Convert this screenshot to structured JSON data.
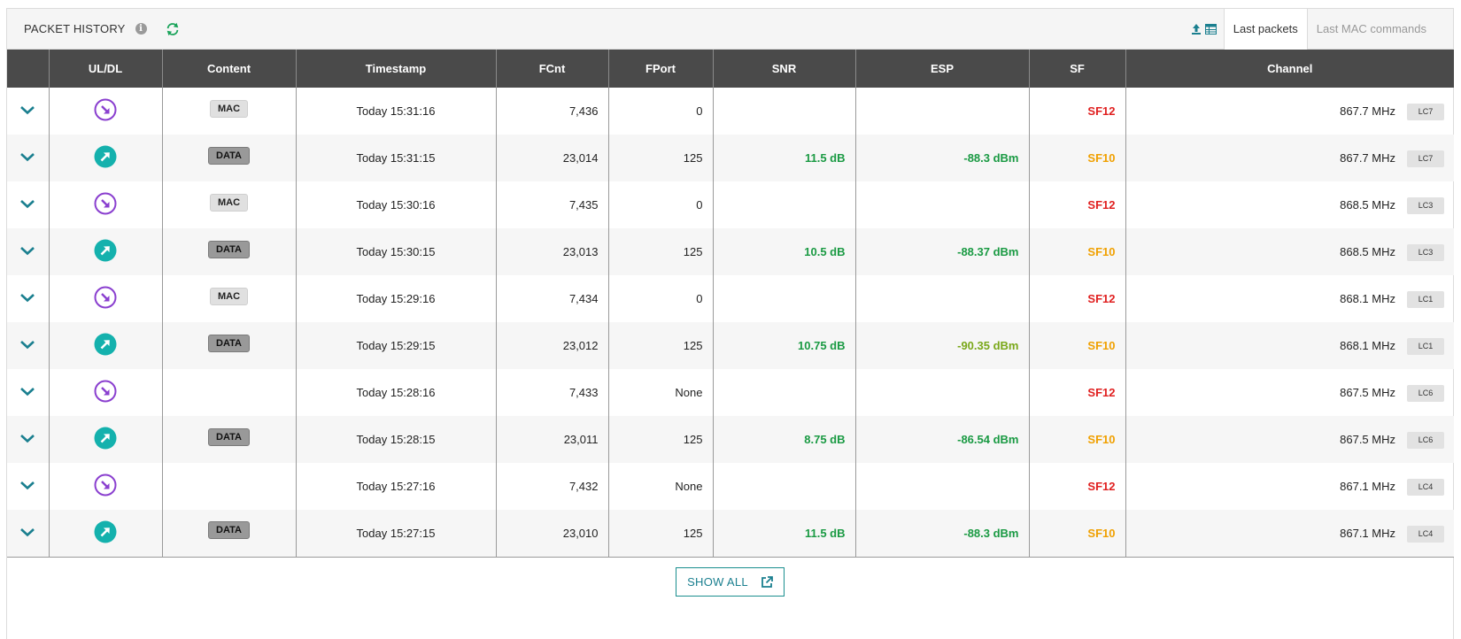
{
  "header": {
    "title": "PACKET HISTORY",
    "tabs": [
      {
        "label": "Last packets",
        "active": true
      },
      {
        "label": "Last MAC commands",
        "active": false
      }
    ]
  },
  "table": {
    "columns": [
      "",
      "UL/DL",
      "Content",
      "Timestamp",
      "FCnt",
      "FPort",
      "SNR",
      "ESP",
      "SF",
      "Channel"
    ],
    "rows": [
      {
        "dir": "down",
        "content": "MAC",
        "timestamp": "Today 15:31:16",
        "fcnt": "7,436",
        "fport": "0",
        "snr": "",
        "esp": "",
        "sf": "SF12",
        "channel": "867.7 MHz",
        "lc": "LC7"
      },
      {
        "dir": "up",
        "content": "DATA",
        "timestamp": "Today 15:31:15",
        "fcnt": "23,014",
        "fport": "125",
        "snr": "11.5 dB",
        "esp": "-88.3 dBm",
        "sf": "SF10",
        "channel": "867.7 MHz",
        "lc": "LC7"
      },
      {
        "dir": "down",
        "content": "MAC",
        "timestamp": "Today 15:30:16",
        "fcnt": "7,435",
        "fport": "0",
        "snr": "",
        "esp": "",
        "sf": "SF12",
        "channel": "868.5 MHz",
        "lc": "LC3"
      },
      {
        "dir": "up",
        "content": "DATA",
        "timestamp": "Today 15:30:15",
        "fcnt": "23,013",
        "fport": "125",
        "snr": "10.5 dB",
        "esp": "-88.37 dBm",
        "sf": "SF10",
        "channel": "868.5 MHz",
        "lc": "LC3"
      },
      {
        "dir": "down",
        "content": "MAC",
        "timestamp": "Today 15:29:16",
        "fcnt": "7,434",
        "fport": "0",
        "snr": "",
        "esp": "",
        "sf": "SF12",
        "channel": "868.1 MHz",
        "lc": "LC1"
      },
      {
        "dir": "up",
        "content": "DATA",
        "timestamp": "Today 15:29:15",
        "fcnt": "23,012",
        "fport": "125",
        "snr": "10.75 dB",
        "esp": "-90.35 dBm",
        "sf": "SF10",
        "channel": "868.1 MHz",
        "lc": "LC1"
      },
      {
        "dir": "down",
        "content": "",
        "timestamp": "Today 15:28:16",
        "fcnt": "7,433",
        "fport": "None",
        "snr": "",
        "esp": "",
        "sf": "SF12",
        "channel": "867.5 MHz",
        "lc": "LC6"
      },
      {
        "dir": "up",
        "content": "DATA",
        "timestamp": "Today 15:28:15",
        "fcnt": "23,011",
        "fport": "125",
        "snr": "8.75 dB",
        "esp": "-86.54 dBm",
        "sf": "SF10",
        "channel": "867.5 MHz",
        "lc": "LC6"
      },
      {
        "dir": "down",
        "content": "",
        "timestamp": "Today 15:27:16",
        "fcnt": "7,432",
        "fport": "None",
        "snr": "",
        "esp": "",
        "sf": "SF12",
        "channel": "867.1 MHz",
        "lc": "LC4"
      },
      {
        "dir": "up",
        "content": "DATA",
        "timestamp": "Today 15:27:15",
        "fcnt": "23,010",
        "fport": "125",
        "snr": "11.5 dB",
        "esp": "-88.3 dBm",
        "sf": "SF10",
        "channel": "867.1 MHz",
        "lc": "LC4"
      }
    ]
  },
  "footer": {
    "show_all_label": "SHOW ALL"
  },
  "colors": {
    "teal": "#14b1ad",
    "purple": "#8a3fcf",
    "header_bg": "#4a4a4a",
    "good": "#1a9a43",
    "ok": "#7aa81a",
    "sf12": "#e02020",
    "sf10": "#f0a000"
  },
  "icons": {
    "info": "info-icon",
    "refresh": "refresh-icon",
    "export": "export-icon",
    "table": "table-icon",
    "expand": "chevron-down-icon",
    "uplink": "arrow-up-right-icon",
    "downlink": "arrow-down-right-icon",
    "external": "external-link-icon"
  }
}
